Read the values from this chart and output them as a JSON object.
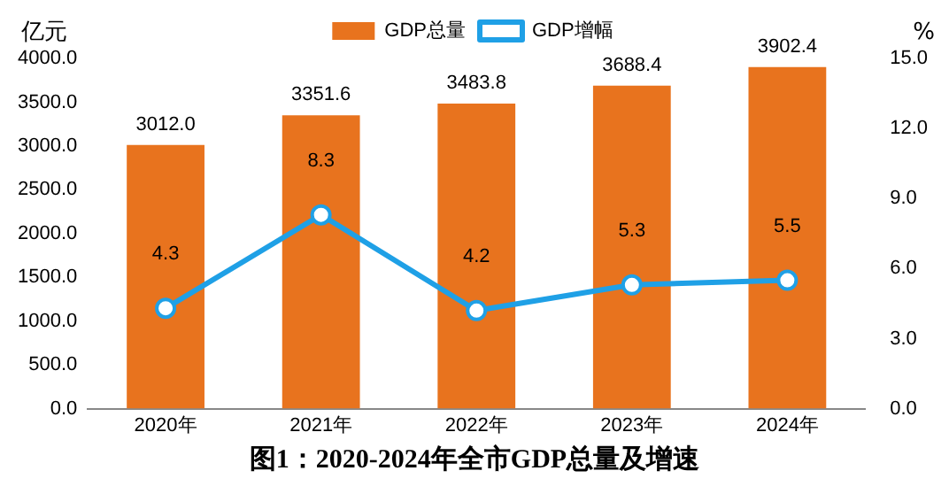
{
  "chart_data": {
    "type": "bar",
    "title": "图1：2020-2024年全市GDP总量及增速",
    "ylabel": "亿元",
    "y2label": "%",
    "categories": [
      "2020年",
      "2021年",
      "2022年",
      "2023年",
      "2024年"
    ],
    "series": [
      {
        "name": "GDP总量",
        "color": "#e8731e",
        "values": [
          3012.0,
          3351.6,
          3483.8,
          3688.4,
          3902.4
        ],
        "value_labels": [
          "3012.0",
          "3351.6",
          "3483.8",
          "3688.4",
          "3902.4"
        ]
      },
      {
        "name": "GDP增幅",
        "type": "line",
        "axis": "y2",
        "color": "#1fa0e6",
        "marker": "circle",
        "values": [
          4.3,
          8.3,
          4.2,
          5.3,
          5.5
        ],
        "value_labels": [
          "4.3",
          "8.3",
          "4.2",
          "5.3",
          "5.5"
        ]
      }
    ],
    "ylim": [
      0,
      4000
    ],
    "yticks": [
      {
        "value": 0,
        "label": "0.0"
      },
      {
        "value": 500,
        "label": "500.0"
      },
      {
        "value": 1000,
        "label": "1000.0"
      },
      {
        "value": 1500,
        "label": "1500.0"
      },
      {
        "value": 2000,
        "label": "2000.0"
      },
      {
        "value": 2500,
        "label": "2500.0"
      },
      {
        "value": 3000,
        "label": "3000.0"
      },
      {
        "value": 3500,
        "label": "3500.0"
      },
      {
        "value": 4000,
        "label": "4000.0"
      }
    ],
    "y2lim": [
      0,
      15
    ],
    "y2ticks": [
      {
        "value": 0,
        "label": "0.0"
      },
      {
        "value": 3,
        "label": "3.0"
      },
      {
        "value": 6,
        "label": "6.0"
      },
      {
        "value": 9,
        "label": "9.0"
      },
      {
        "value": 12,
        "label": "12.0"
      },
      {
        "value": 15,
        "label": "15.0"
      }
    ],
    "legend": "top",
    "grid": false
  }
}
